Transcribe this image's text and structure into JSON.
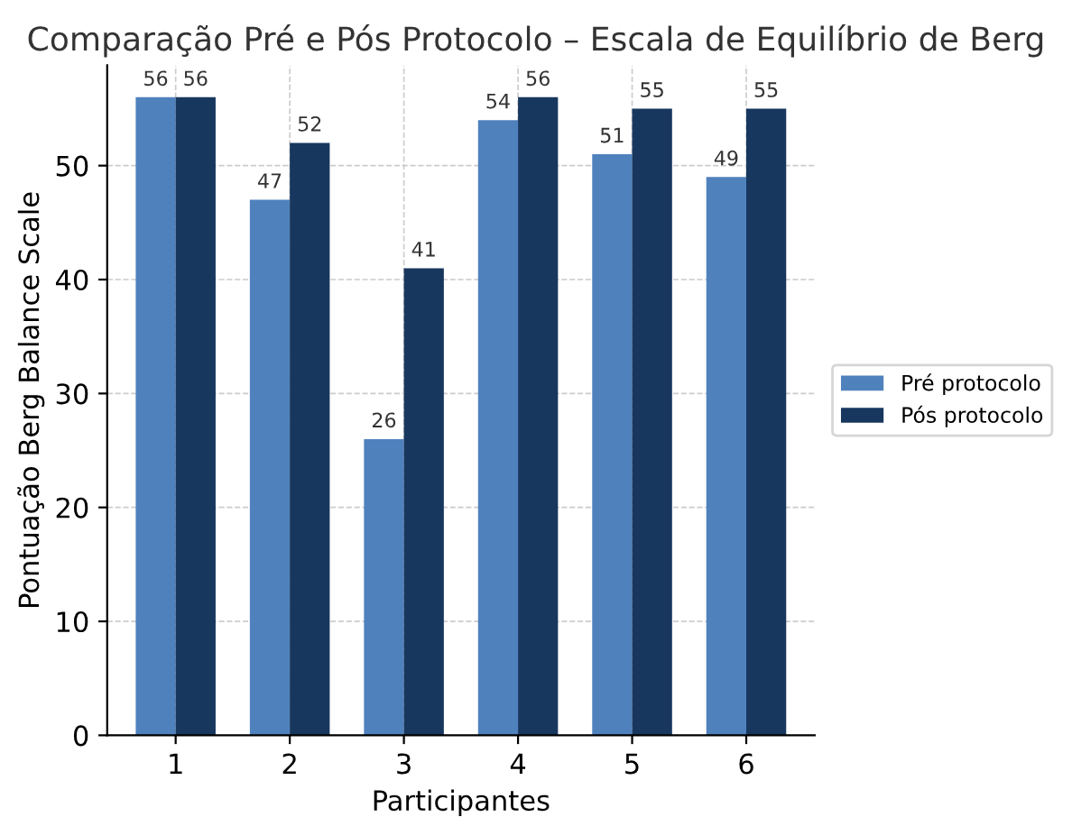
{
  "chart_data": {
    "type": "bar",
    "title": "Comparação Pré e Pós Protocolo – Escala de Equilíbrio de Berg",
    "xlabel": "Participantes",
    "ylabel": "Pontuação Berg Balance Scale",
    "categories": [
      "1",
      "2",
      "3",
      "4",
      "5",
      "6"
    ],
    "series": [
      {
        "name": "Pré protocolo",
        "color": "#4f81bd",
        "values": [
          56,
          47,
          26,
          54,
          51,
          49
        ]
      },
      {
        "name": "Pós protocolo",
        "color": "#17375e",
        "values": [
          56,
          52,
          41,
          56,
          55,
          55
        ]
      }
    ],
    "ylim": [
      0,
      58.8
    ],
    "yticks": [
      0,
      10,
      20,
      30,
      40,
      50
    ],
    "grid": true,
    "legend": "right",
    "data_labels": true
  }
}
